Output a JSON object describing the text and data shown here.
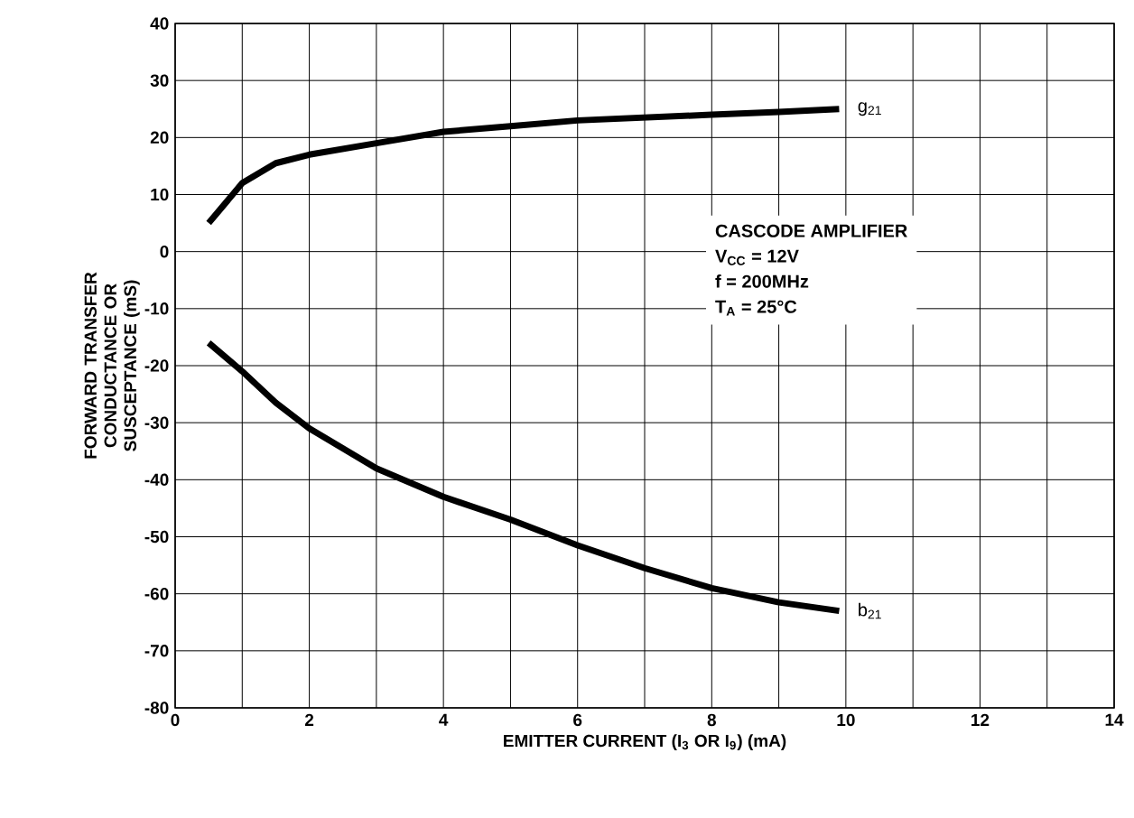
{
  "chart_data": {
    "type": "line",
    "xlabel": "EMITTER CURRENT (I$_{3}$ OR I$_{9}$) (mA)",
    "ylabel": "FORWARD TRANSFER CONDUCTANCE OR SUSCEPTANCE (mS)",
    "x": [
      0.5,
      1,
      1.5,
      2,
      3,
      4,
      5,
      6,
      7,
      8,
      9,
      9.9
    ],
    "series": [
      {
        "name": "g$_{21}$",
        "color": "#000000",
        "values": [
          5,
          12,
          15.5,
          17,
          19,
          21,
          22,
          23,
          23.5,
          24,
          24.5,
          25
        ]
      },
      {
        "name": "b$_{21}$",
        "color": "#000000",
        "values": [
          -16,
          -21,
          -26.5,
          -31,
          -38,
          -43,
          -47,
          -51.5,
          -55.5,
          -59,
          -61.5,
          -63
        ]
      }
    ],
    "xlim": [
      0,
      14
    ],
    "ylim": [
      -80,
      40
    ],
    "xticks": [
      0,
      2,
      4,
      6,
      8,
      10,
      12,
      14
    ],
    "yticks": [
      -80,
      -70,
      -60,
      -50,
      -40,
      -30,
      -20,
      -10,
      0,
      10,
      20,
      30,
      40
    ],
    "grid": true,
    "annotations": [
      "CASCODE AMPLIFIER",
      "V$_{CC}$ = 12V",
      "f = 200MHz",
      "T$_{A}$ = 25°C"
    ]
  }
}
